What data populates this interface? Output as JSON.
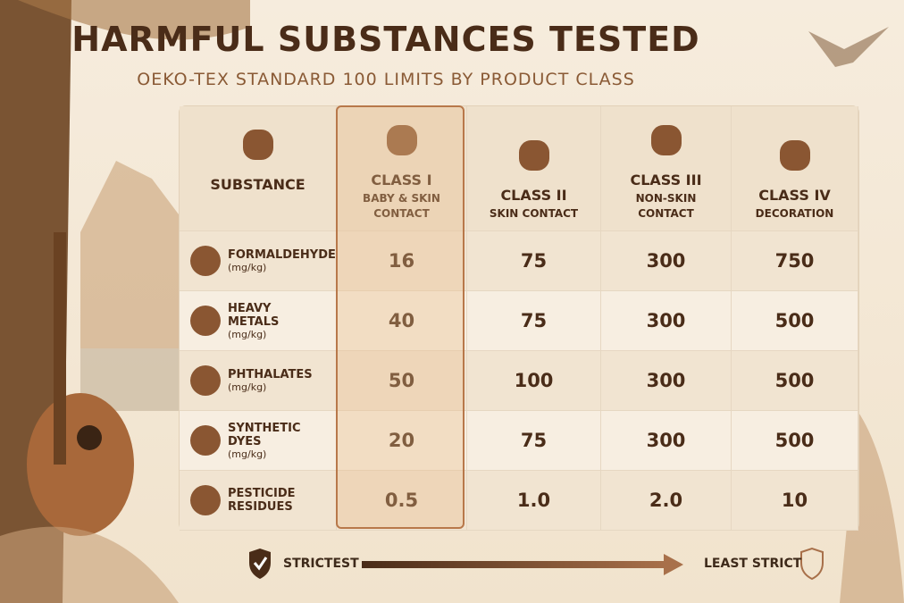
{
  "header": {
    "title": "HARMFUL SUBSTANCES TESTED",
    "subtitle": "OEKO-TEX STANDARD 100 LIMITS BY PRODUCT CLASS"
  },
  "table": {
    "columns": [
      {
        "title": "SUBSTANCE"
      },
      {
        "title": "CLASS I",
        "subtitle": "BABY & SKIN CONTACT"
      },
      {
        "title": "CLASS II",
        "subtitle": "SKIN CONTACT"
      },
      {
        "title": "CLASS III",
        "subtitle": "NON-SKIN CONTACT"
      },
      {
        "title": "CLASS IV",
        "subtitle": "DECORATION"
      }
    ],
    "rows": [
      {
        "name": "FORMALDEHYDE",
        "unit": "(mg/kg)",
        "values": [
          "16",
          "75",
          "300",
          "750"
        ]
      },
      {
        "name": "HEAVY METALS",
        "unit": "(mg/kg)",
        "values": [
          "40",
          "75",
          "300",
          "500"
        ]
      },
      {
        "name": "PHTHALATES",
        "unit": "(mg/kg)",
        "values": [
          "50",
          "100",
          "300",
          "500"
        ]
      },
      {
        "name": "SYNTHETIC DYES",
        "unit": "(mg/kg)",
        "values": [
          "20",
          "75",
          "300",
          "500"
        ]
      },
      {
        "name": "PESTICIDE RESIDUES",
        "values": [
          "0.5",
          "1.0",
          "2.0",
          "10"
        ]
      }
    ]
  },
  "footer": {
    "start": "STRICTEST",
    "end": "LEAST STRICT"
  }
}
